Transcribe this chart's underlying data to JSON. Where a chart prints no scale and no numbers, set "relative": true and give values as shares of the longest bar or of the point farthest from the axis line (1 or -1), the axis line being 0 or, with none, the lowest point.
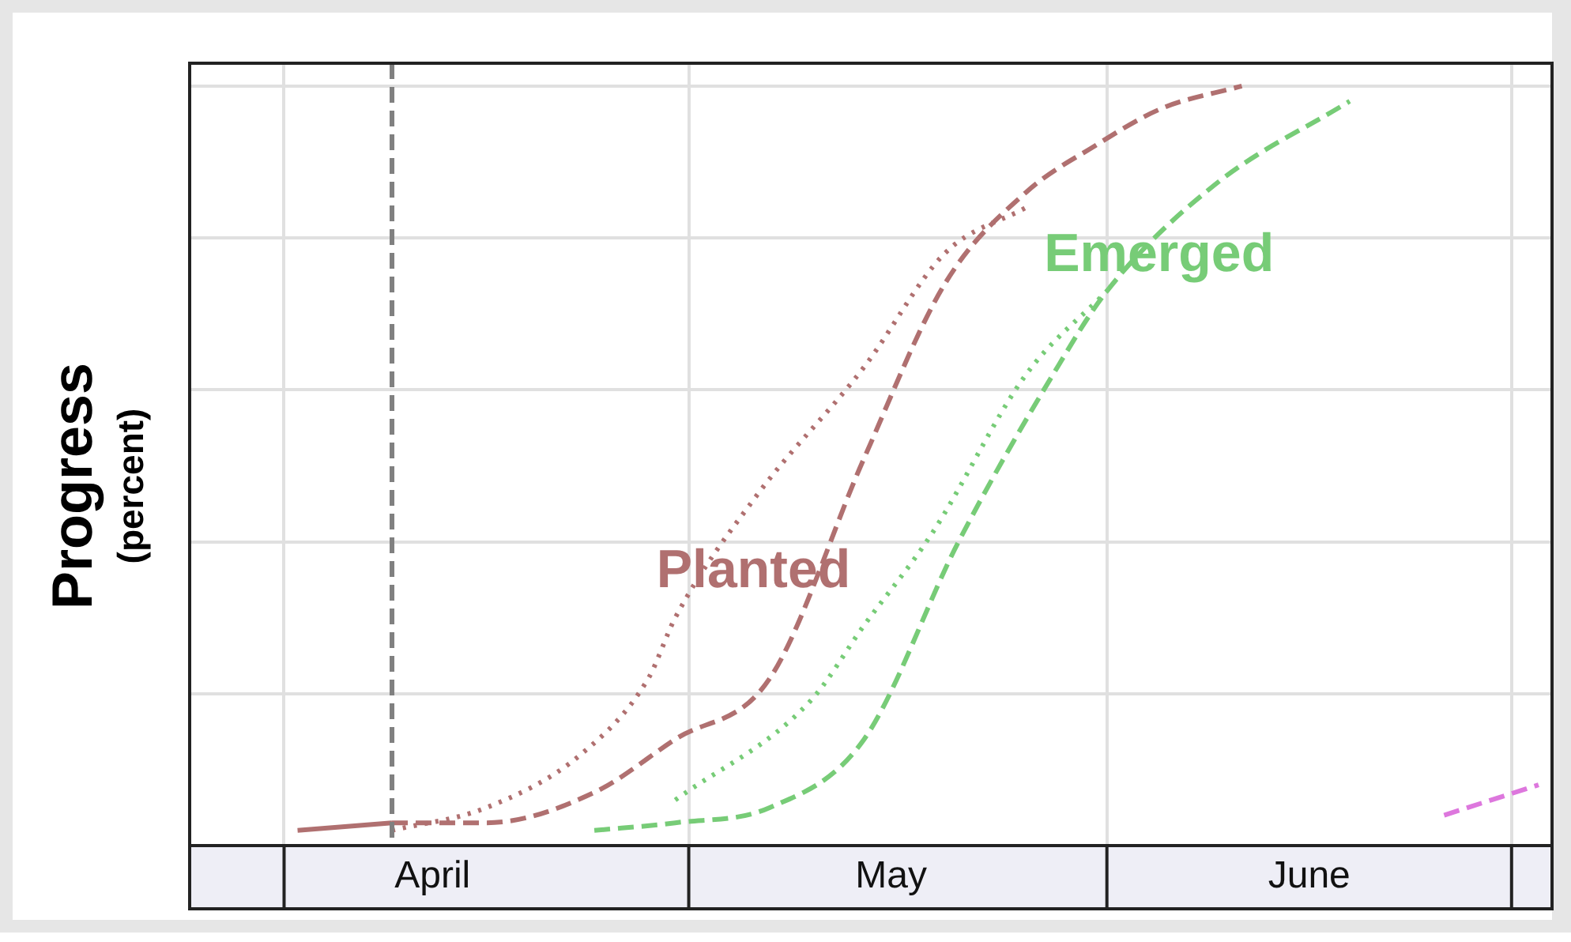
{
  "chart_data": {
    "type": "line",
    "ylabel": "Progress (percent)",
    "relative": true,
    "grid": true,
    "legend": false,
    "xlim": [
      "--03-25",
      "--07-04"
    ],
    "xticks": [
      {
        "value": "--04-01",
        "label": null
      },
      {
        "value": "--04-12",
        "label": "April"
      },
      {
        "value": "--05-01",
        "label": null
      },
      {
        "value": "--05-16",
        "label": "May"
      },
      {
        "value": "--06-01",
        "label": null
      },
      {
        "value": "--06-16",
        "label": "June"
      },
      {
        "value": "--07-01",
        "label": null
      }
    ],
    "ref_lines": [
      {
        "axis": "x",
        "value": "--04-09",
        "color": "#808080",
        "line_style": "dashed"
      }
    ],
    "series": [
      {
        "color": "#b07070",
        "line_style": "solid",
        "x": [
          "--04-02",
          "--04-09"
        ],
        "values": [
          0.02,
          0.03
        ]
      },
      {
        "color": "#b07070",
        "line_style": "dotted",
        "x": [
          "--04-09",
          "--04-16",
          "--04-23",
          "--04-28",
          "--04-30",
          "--05-06",
          "--05-14",
          "--05-20",
          "--05-26"
        ],
        "values": [
          0.02,
          0.05,
          0.12,
          0.22,
          0.3,
          0.46,
          0.63,
          0.78,
          0.84
        ]
      },
      {
        "name": "Planted",
        "color": "#b07070",
        "line_style": "dashed",
        "x": [
          "--04-09",
          "--04-16",
          "--04-24",
          "--04-30",
          "--05-07",
          "--05-14",
          "--05-20",
          "--05-26",
          "--05-31",
          "--06-05",
          "--06-11"
        ],
        "values": [
          0.03,
          0.03,
          0.07,
          0.14,
          0.22,
          0.51,
          0.74,
          0.86,
          0.92,
          0.97,
          1.0
        ]
      },
      {
        "color": "#77cc77",
        "line_style": "dotted",
        "x": [
          "--04-30",
          "--05-10",
          "--05-14",
          "--05-19",
          "--05-26",
          "--06-01"
        ],
        "values": [
          0.06,
          0.19,
          0.29,
          0.41,
          0.62,
          0.73
        ]
      },
      {
        "name": "Emerged",
        "color": "#77cc77",
        "line_style": "dashed",
        "x": [
          "--04-24",
          "--04-30",
          "--05-07",
          "--05-14",
          "--05-21",
          "--05-28",
          "--06-01",
          "--06-09",
          "--06-19"
        ],
        "values": [
          0.02,
          0.03,
          0.05,
          0.14,
          0.4,
          0.62,
          0.73,
          0.87,
          0.98
        ]
      },
      {
        "color": "#dd77dd",
        "line_style": "dashed",
        "x": [
          "--06-26",
          "--07-03"
        ],
        "values": [
          0.04,
          0.08
        ]
      }
    ]
  }
}
